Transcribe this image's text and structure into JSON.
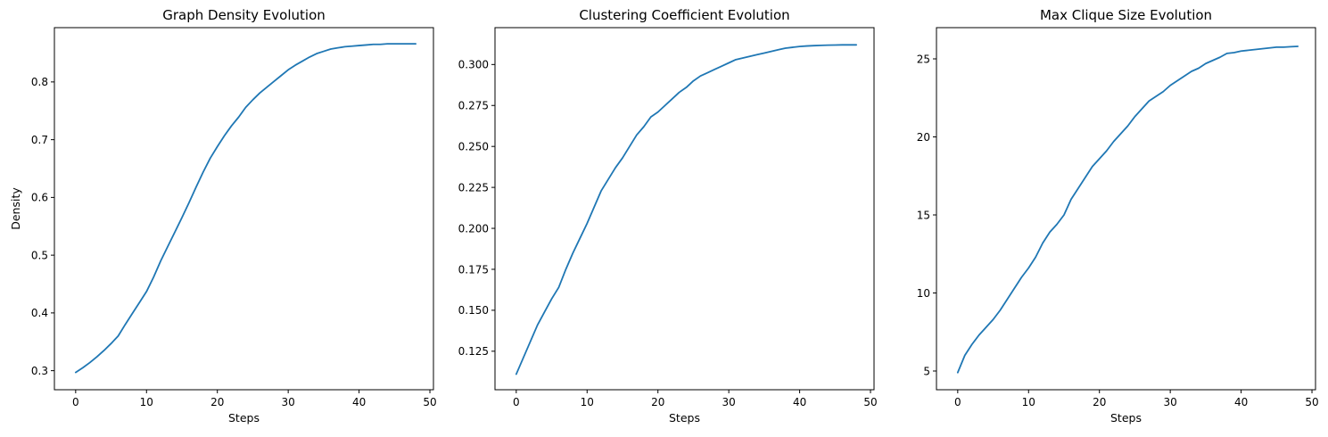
{
  "line_color": "#1f77b4",
  "chart_data": [
    {
      "type": "line",
      "title": "Graph Density Evolution",
      "xlabel": "Steps",
      "ylabel": "Density",
      "xlim": [
        -3,
        50.5
      ],
      "ylim": [
        0.267,
        0.894
      ],
      "xticks": [
        0,
        10,
        20,
        30,
        40,
        50
      ],
      "yticks": [
        0.3,
        0.4,
        0.5,
        0.6,
        0.7,
        0.8
      ],
      "xtick_labels": [
        "0",
        "10",
        "20",
        "30",
        "40",
        "50"
      ],
      "ytick_labels": [
        "0.3",
        "0.4",
        "0.5",
        "0.6",
        "0.7",
        "0.8"
      ],
      "grid": false,
      "series": [
        {
          "x": [
            0,
            1,
            2,
            3,
            4,
            5,
            6,
            7,
            8,
            9,
            10,
            11,
            12,
            13,
            14,
            15,
            16,
            17,
            18,
            19,
            20,
            21,
            22,
            23,
            24,
            25,
            26,
            27,
            28,
            29,
            30,
            31,
            32,
            33,
            34,
            35,
            36,
            37,
            38,
            39,
            40,
            41,
            42,
            43,
            44,
            45,
            46,
            47,
            48
          ],
          "values": [
            0.297,
            0.305,
            0.314,
            0.324,
            0.335,
            0.347,
            0.36,
            0.38,
            0.399,
            0.418,
            0.437,
            0.462,
            0.49,
            0.515,
            0.54,
            0.565,
            0.591,
            0.618,
            0.644,
            0.668,
            0.688,
            0.707,
            0.724,
            0.739,
            0.756,
            0.769,
            0.781,
            0.791,
            0.801,
            0.811,
            0.821,
            0.829,
            0.836,
            0.843,
            0.849,
            0.853,
            0.857,
            0.859,
            0.861,
            0.862,
            0.863,
            0.864,
            0.865,
            0.865,
            0.866,
            0.866,
            0.866,
            0.866,
            0.866
          ]
        }
      ]
    },
    {
      "type": "line",
      "title": "Clustering Coefficient Evolution",
      "xlabel": "Steps",
      "ylabel": "",
      "xlim": [
        -3,
        50.5
      ],
      "ylim": [
        0.1015,
        0.3225
      ],
      "xticks": [
        0,
        10,
        20,
        30,
        40,
        50
      ],
      "yticks": [
        0.125,
        0.15,
        0.175,
        0.2,
        0.225,
        0.25,
        0.275,
        0.3
      ],
      "xtick_labels": [
        "0",
        "10",
        "20",
        "30",
        "40",
        "50"
      ],
      "ytick_labels": [
        "0.125",
        "0.150",
        "0.175",
        "0.200",
        "0.225",
        "0.250",
        "0.275",
        "0.300"
      ],
      "grid": false,
      "series": [
        {
          "x": [
            0,
            1,
            2,
            3,
            4,
            5,
            6,
            7,
            8,
            9,
            10,
            11,
            12,
            13,
            14,
            15,
            16,
            17,
            18,
            19,
            20,
            21,
            22,
            23,
            24,
            25,
            26,
            27,
            28,
            29,
            30,
            31,
            32,
            33,
            34,
            35,
            36,
            37,
            38,
            39,
            40,
            41,
            42,
            43,
            44,
            45,
            46,
            47,
            48
          ],
          "values": [
            0.111,
            0.121,
            0.131,
            0.141,
            0.149,
            0.157,
            0.164,
            0.175,
            0.185,
            0.194,
            0.203,
            0.213,
            0.223,
            0.23,
            0.237,
            0.243,
            0.25,
            0.257,
            0.262,
            0.268,
            0.271,
            0.275,
            0.279,
            0.283,
            0.286,
            0.29,
            0.293,
            0.295,
            0.297,
            0.299,
            0.301,
            0.303,
            0.304,
            0.305,
            0.306,
            0.307,
            0.308,
            0.309,
            0.31,
            0.3105,
            0.311,
            0.3113,
            0.3115,
            0.3117,
            0.3118,
            0.3119,
            0.312,
            0.312,
            0.312
          ]
        }
      ]
    },
    {
      "type": "line",
      "title": "Max Clique Size Evolution",
      "xlabel": "Steps",
      "ylabel": "",
      "xlim": [
        -3,
        50.5
      ],
      "ylim": [
        3.8,
        27
      ],
      "xticks": [
        0,
        10,
        20,
        30,
        40,
        50
      ],
      "yticks": [
        5,
        10,
        15,
        20,
        25
      ],
      "xtick_labels": [
        "0",
        "10",
        "20",
        "30",
        "40",
        "50"
      ],
      "ytick_labels": [
        "5",
        "10",
        "15",
        "20",
        "25"
      ],
      "grid": false,
      "series": [
        {
          "x": [
            0,
            1,
            2,
            3,
            4,
            5,
            6,
            7,
            8,
            9,
            10,
            11,
            12,
            13,
            14,
            15,
            16,
            17,
            18,
            19,
            20,
            21,
            22,
            23,
            24,
            25,
            26,
            27,
            28,
            29,
            30,
            31,
            32,
            33,
            34,
            35,
            36,
            37,
            38,
            39,
            40,
            41,
            42,
            43,
            44,
            45,
            46,
            47,
            48
          ],
          "values": [
            4.9,
            6.0,
            6.7,
            7.3,
            7.8,
            8.3,
            8.9,
            9.6,
            10.3,
            11.0,
            11.6,
            12.3,
            13.2,
            13.9,
            14.4,
            15.0,
            16.0,
            16.7,
            17.4,
            18.1,
            18.6,
            19.1,
            19.7,
            20.2,
            20.7,
            21.3,
            21.8,
            22.3,
            22.6,
            22.9,
            23.3,
            23.6,
            23.9,
            24.2,
            24.4,
            24.7,
            24.9,
            25.1,
            25.35,
            25.4,
            25.5,
            25.55,
            25.6,
            25.65,
            25.7,
            25.75,
            25.75,
            25.78,
            25.8
          ]
        }
      ]
    }
  ]
}
